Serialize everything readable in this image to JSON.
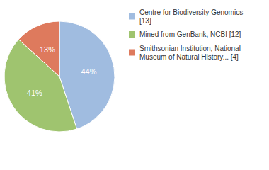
{
  "chart_data": {
    "type": "pie",
    "categories": [
      "Centre for Biodiversity Genomics [13]",
      "Mined from GenBank, NCBI [12]",
      "Smithsonian Institution, National Museum of Natural History... [4]"
    ],
    "values": [
      44,
      41,
      13
    ],
    "value_labels": [
      "44%",
      "41%",
      "13%"
    ],
    "colors": [
      "#a0bce0",
      "#9fc46f",
      "#de7a5d"
    ],
    "data_labels": true,
    "legend": "top-right"
  }
}
